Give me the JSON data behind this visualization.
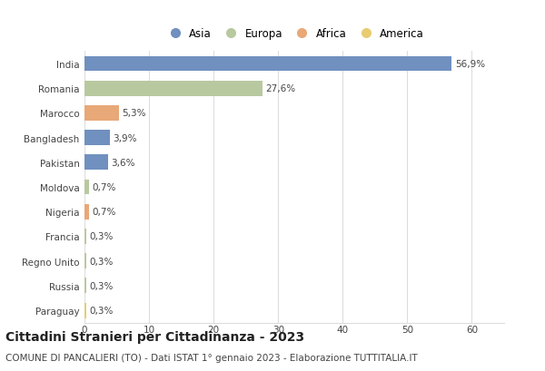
{
  "countries": [
    "India",
    "Romania",
    "Marocco",
    "Bangladesh",
    "Pakistan",
    "Moldova",
    "Nigeria",
    "Francia",
    "Regno Unito",
    "Russia",
    "Paraguay"
  ],
  "values": [
    56.9,
    27.6,
    5.3,
    3.9,
    3.6,
    0.7,
    0.7,
    0.3,
    0.3,
    0.3,
    0.3
  ],
  "labels": [
    "56,9%",
    "27,6%",
    "5,3%",
    "3,9%",
    "3,6%",
    "0,7%",
    "0,7%",
    "0,3%",
    "0,3%",
    "0,3%",
    "0,3%"
  ],
  "continents": [
    "Asia",
    "Europa",
    "Africa",
    "Asia",
    "Asia",
    "Europa",
    "Africa",
    "Europa",
    "Europa",
    "Europa",
    "America"
  ],
  "colors": {
    "Asia": "#7090bf",
    "Europa": "#b8c9a0",
    "Africa": "#e8a878",
    "America": "#e8cc70"
  },
  "legend_order": [
    "Asia",
    "Europa",
    "Africa",
    "America"
  ],
  "xlim": [
    0,
    65
  ],
  "xticks": [
    0,
    10,
    20,
    30,
    40,
    50,
    60
  ],
  "title": "Cittadini Stranieri per Cittadinanza - 2023",
  "subtitle": "COMUNE DI PANCALIERI (TO) - Dati ISTAT 1° gennaio 2023 - Elaborazione TUTTITALIA.IT",
  "title_fontsize": 10,
  "subtitle_fontsize": 7.5,
  "label_fontsize": 7.5,
  "tick_fontsize": 7.5,
  "legend_fontsize": 8.5,
  "background_color": "#ffffff",
  "grid_color": "#dddddd"
}
